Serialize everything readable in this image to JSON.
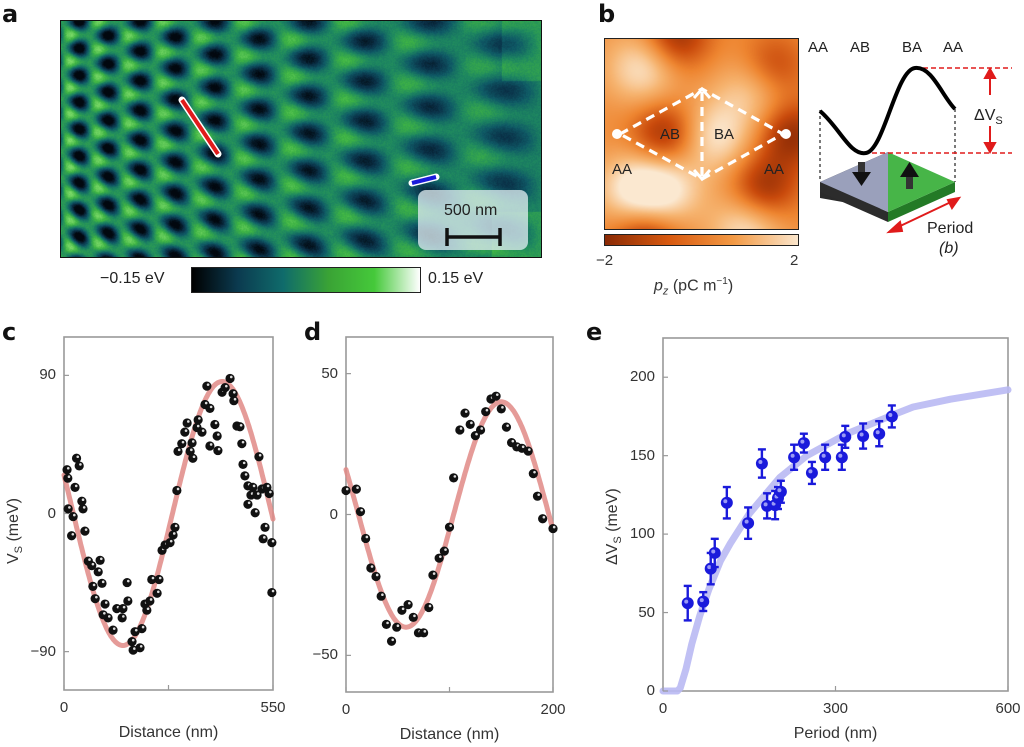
{
  "panels": {
    "a": {
      "letter": "a",
      "colorbar": {
        "min_label": "−0.15 eV",
        "max_label": "0.15 eV",
        "min": -0.15,
        "max": 0.15,
        "unit": "eV",
        "colors": [
          "#000000",
          "#0b3a4f",
          "#0f6b6b",
          "#3aa335",
          "#45c93a",
          "#ffffff"
        ]
      },
      "scale_bar": {
        "label": "500 nm"
      },
      "linecuts": [
        {
          "name": "red-linecut",
          "color": "#e01b1b",
          "panel": "c"
        },
        {
          "name": "blue-linecut",
          "color": "#1a1adb",
          "panel": "d"
        }
      ]
    },
    "b": {
      "letter": "b",
      "map_labels": [
        "AB",
        "BA",
        "AA",
        "AA"
      ],
      "colorbar": {
        "min_label": "−2",
        "max_label": "2",
        "min": -2,
        "max": 2,
        "colors": [
          "#8a2a05",
          "#d85a10",
          "#f39a45",
          "#fbe6cc"
        ]
      },
      "colorbar_label": "p",
      "colorbar_label_sub": "z",
      "colorbar_label_unit": " (pC m",
      "colorbar_label_exp": "−1",
      "colorbar_label_end": ")",
      "schematic": {
        "stacking_labels": [
          "AA",
          "AB",
          "BA",
          "AA"
        ],
        "delta_label": "ΔV",
        "delta_sub": "S",
        "period_label": "Period",
        "period_sub": "(b)",
        "colors": {
          "domain_down": "#9aa0bb",
          "domain_up": "#47b548",
          "curve": "#000000",
          "guide": "#e01b1b"
        }
      }
    }
  },
  "chart_data": [
    {
      "id": "c",
      "letter": "c",
      "type": "scatter",
      "title": "",
      "xlabel": "Distance (nm)",
      "ylabel": "V",
      "ylabel_sub": "S",
      "ylabel_unit": " (meV)",
      "xlim": [
        0,
        550
      ],
      "ylim": [
        -115,
        115
      ],
      "xticks": [
        0,
        275,
        550
      ],
      "xtick_labels": [
        "0",
        "",
        "550"
      ],
      "yticks": [
        90,
        0,
        -90
      ],
      "ytick_labels": [
        "90",
        "0",
        "−90"
      ],
      "grid": false,
      "marker_color": "#111111",
      "fit_color": "#e08a86",
      "fit": {
        "type": "sine",
        "amplitude": 86,
        "period": 522,
        "phase_x0": 285.5,
        "offset": 0
      },
      "points": [
        [
          8,
          28.5
        ],
        [
          10,
          23
        ],
        [
          33,
          36
        ],
        [
          40,
          31
        ],
        [
          29,
          17
        ],
        [
          11,
          3
        ],
        [
          24,
          -2
        ],
        [
          20,
          -14.5
        ],
        [
          47,
          8
        ],
        [
          50,
          3
        ],
        [
          55,
          -11.5
        ],
        [
          64,
          -31
        ],
        [
          73,
          -34
        ],
        [
          95,
          -30.5
        ],
        [
          90,
          -38
        ],
        [
          100,
          -45.5
        ],
        [
          76,
          -47.5
        ],
        [
          82,
          -55.5
        ],
        [
          108,
          -59
        ],
        [
          116,
          -68
        ],
        [
          103,
          -66
        ],
        [
          129,
          -76
        ],
        [
          139,
          -62
        ],
        [
          153,
          -68
        ],
        [
          166,
          -45
        ],
        [
          168,
          -57
        ],
        [
          155,
          -62
        ],
        [
          179,
          -83.5
        ],
        [
          182,
          -89
        ],
        [
          200,
          -87.5
        ],
        [
          205,
          -75
        ],
        [
          187,
          -77
        ],
        [
          218,
          -63
        ],
        [
          213,
          -59
        ],
        [
          226,
          -57
        ],
        [
          231,
          -43
        ],
        [
          245,
          -52
        ],
        [
          250,
          -43
        ],
        [
          258,
          -24
        ],
        [
          266,
          -20.5
        ],
        [
          279,
          -19
        ],
        [
          287,
          -14
        ],
        [
          292,
          -9
        ],
        [
          297,
          15
        ],
        [
          300,
          40.5
        ],
        [
          310,
          45.5
        ],
        [
          318,
          53
        ],
        [
          324,
          59
        ],
        [
          332,
          40.5
        ],
        [
          337,
          46
        ],
        [
          339,
          36
        ],
        [
          350,
          56
        ],
        [
          353,
          61
        ],
        [
          363,
          53
        ],
        [
          371,
          71
        ],
        [
          376,
          83
        ],
        [
          384,
          68.5
        ],
        [
          384,
          44
        ],
        [
          397,
          58
        ],
        [
          403,
          50.5
        ],
        [
          405,
          41
        ],
        [
          416,
          79
        ],
        [
          424,
          82
        ],
        [
          437,
          88
        ],
        [
          445,
          78
        ],
        [
          447,
          73.5
        ],
        [
          455,
          57
        ],
        [
          463,
          56.5
        ],
        [
          468,
          45.5
        ],
        [
          471,
          32
        ],
        [
          476,
          24.5
        ],
        [
          484,
          18
        ],
        [
          497,
          17
        ],
        [
          492,
          12
        ],
        [
          508,
          12
        ],
        [
          513,
          37
        ],
        [
          521,
          16
        ],
        [
          534,
          17
        ],
        [
          540,
          13
        ],
        [
          484,
          6
        ],
        [
          503,
          0.5
        ],
        [
          529,
          -9
        ],
        [
          524,
          -16.5
        ],
        [
          547,
          -19
        ],
        [
          547,
          -51.5
        ]
      ]
    },
    {
      "id": "d",
      "letter": "d",
      "type": "scatter",
      "title": "",
      "xlabel": "Distance (nm)",
      "ylabel": "",
      "xlim": [
        0,
        200
      ],
      "ylim": [
        -63,
        63
      ],
      "xticks": [
        0,
        100,
        200
      ],
      "xtick_labels": [
        "0",
        "",
        "200"
      ],
      "yticks": [
        50,
        0,
        -50
      ],
      "ytick_labels": [
        "50",
        "0",
        "−50"
      ],
      "grid": false,
      "marker_color": "#111111",
      "fit_color": "#e08a86",
      "fit": {
        "type": "sine",
        "amplitude": 40,
        "period": 184,
        "phase_x0": 104,
        "offset": 0
      },
      "points": [
        [
          0,
          8.5
        ],
        [
          10,
          9
        ],
        [
          14,
          1
        ],
        [
          19,
          -8.5
        ],
        [
          24,
          -19
        ],
        [
          29,
          -22
        ],
        [
          34,
          -29
        ],
        [
          39,
          -39
        ],
        [
          44,
          -45
        ],
        [
          49,
          -40
        ],
        [
          54,
          -34
        ],
        [
          60,
          -32
        ],
        [
          65,
          -36.5
        ],
        [
          70,
          -42
        ],
        [
          75,
          -42
        ],
        [
          80,
          -33
        ],
        [
          84,
          -21.5
        ],
        [
          90,
          -15.5
        ],
        [
          95,
          -13
        ],
        [
          100,
          -4.5
        ],
        [
          104,
          13
        ],
        [
          110,
          30
        ],
        [
          115,
          36
        ],
        [
          120,
          32
        ],
        [
          125,
          28
        ],
        [
          130,
          30
        ],
        [
          135,
          36.5
        ],
        [
          140,
          41
        ],
        [
          145,
          42
        ],
        [
          150,
          37.5
        ],
        [
          155,
          31
        ],
        [
          160,
          25.5
        ],
        [
          165,
          24
        ],
        [
          170,
          23.5
        ],
        [
          176,
          22.5
        ],
        [
          181,
          14.5
        ],
        [
          185,
          6.5
        ],
        [
          190,
          -1.5
        ],
        [
          200,
          -5
        ]
      ]
    },
    {
      "id": "e",
      "letter": "e",
      "type": "scatter",
      "title": "",
      "xlabel": "Period (nm)",
      "ylabel": "ΔV",
      "ylabel_sub": "S",
      "ylabel_unit": " (meV)",
      "xlim": [
        0,
        600
      ],
      "ylim": [
        0,
        225
      ],
      "xticks": [
        0,
        300,
        600
      ],
      "xtick_labels": [
        "0",
        "300",
        "600"
      ],
      "yticks": [
        0,
        50,
        100,
        150,
        200
      ],
      "ytick_labels": [
        "0",
        "50",
        "100",
        "150",
        "200"
      ],
      "grid": false,
      "marker_color": "#1a1adb",
      "fit_color": "#b9b9f3",
      "fit_curve": {
        "x": [
          20,
          25,
          30,
          40,
          50,
          64,
          80,
          100,
          117,
          150,
          203,
          250,
          320,
          400,
          435,
          500,
          600
        ],
        "y": [
          0,
          0,
          2,
          14,
          30,
          48,
          65,
          83,
          94,
          113,
          136,
          150,
          164,
          176,
          181,
          186,
          192
        ]
      },
      "points": [
        {
          "x": 43,
          "y": 56,
          "err": 11
        },
        {
          "x": 70,
          "y": 57,
          "err": 6
        },
        {
          "x": 83,
          "y": 78,
          "err": 10
        },
        {
          "x": 90,
          "y": 88,
          "err": 9
        },
        {
          "x": 111,
          "y": 120,
          "err": 10
        },
        {
          "x": 148,
          "y": 107,
          "err": 10
        },
        {
          "x": 172,
          "y": 145,
          "err": 9
        },
        {
          "x": 181,
          "y": 118,
          "err": 8
        },
        {
          "x": 195,
          "y": 118.5,
          "err": 9
        },
        {
          "x": 200,
          "y": 123,
          "err": 7
        },
        {
          "x": 205,
          "y": 127,
          "err": 7
        },
        {
          "x": 228,
          "y": 149,
          "err": 8
        },
        {
          "x": 245,
          "y": 158,
          "err": 6
        },
        {
          "x": 259,
          "y": 139,
          "err": 7
        },
        {
          "x": 282,
          "y": 149,
          "err": 8
        },
        {
          "x": 311,
          "y": 149,
          "err": 8
        },
        {
          "x": 317,
          "y": 162,
          "err": 7
        },
        {
          "x": 348,
          "y": 162.5,
          "err": 8
        },
        {
          "x": 376,
          "y": 164,
          "err": 8
        },
        {
          "x": 398,
          "y": 175,
          "err": 7
        }
      ]
    }
  ]
}
